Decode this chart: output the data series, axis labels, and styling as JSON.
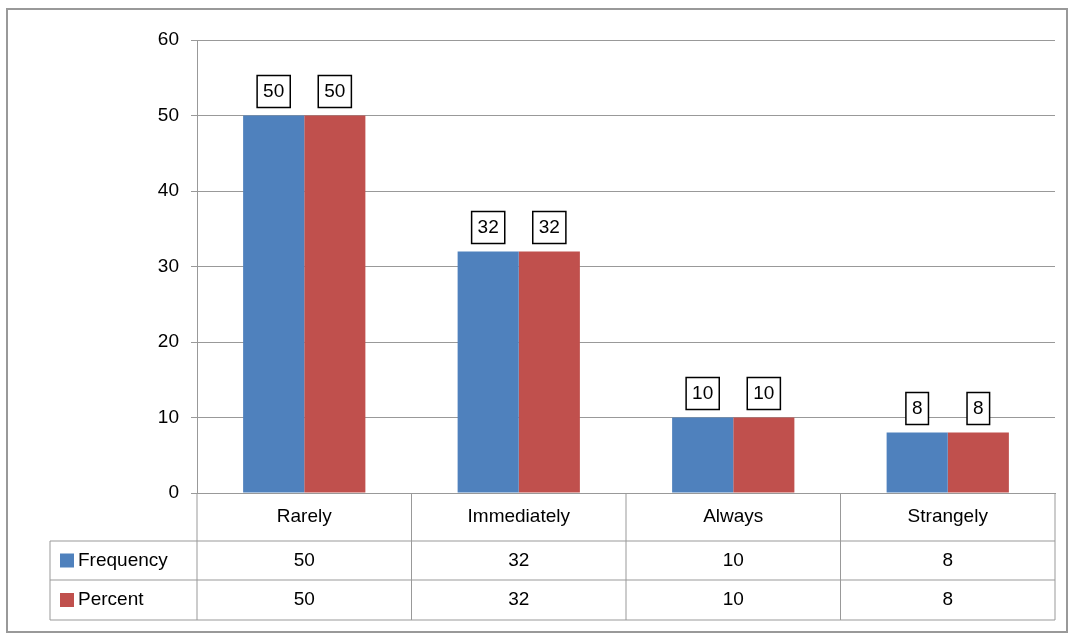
{
  "chart_data": {
    "type": "bar",
    "categories": [
      "Rarely",
      "Immediately",
      "Always",
      "Strangely"
    ],
    "series": [
      {
        "name": "Frequency",
        "color": "#4f81bd",
        "values": [
          50,
          32,
          10,
          8
        ]
      },
      {
        "name": "Percent",
        "color": "#c0504d",
        "values": [
          50,
          32,
          10,
          8
        ]
      }
    ],
    "annotations": [
      {
        "text": "50",
        "x": "Rarely",
        "y": 50
      },
      {
        "text": "50",
        "x": "Rarely",
        "y": 50
      },
      {
        "text": "32",
        "x": "Immediately",
        "y": 32
      },
      {
        "text": "32",
        "x": "Immediately",
        "y": 32
      },
      {
        "text": "10",
        "x": "Always",
        "y": 10
      },
      {
        "text": "10",
        "x": "Always",
        "y": 10
      },
      {
        "text": "8",
        "x": "Strangely",
        "y": 8
      },
      {
        "text": "8",
        "x": "Strangely",
        "y": 8
      }
    ],
    "ylim": [
      0,
      60
    ],
    "yticks": [
      0,
      10,
      20,
      30,
      40,
      50,
      60
    ],
    "grid": "y",
    "legend": "bottom",
    "data_labels": true
  }
}
